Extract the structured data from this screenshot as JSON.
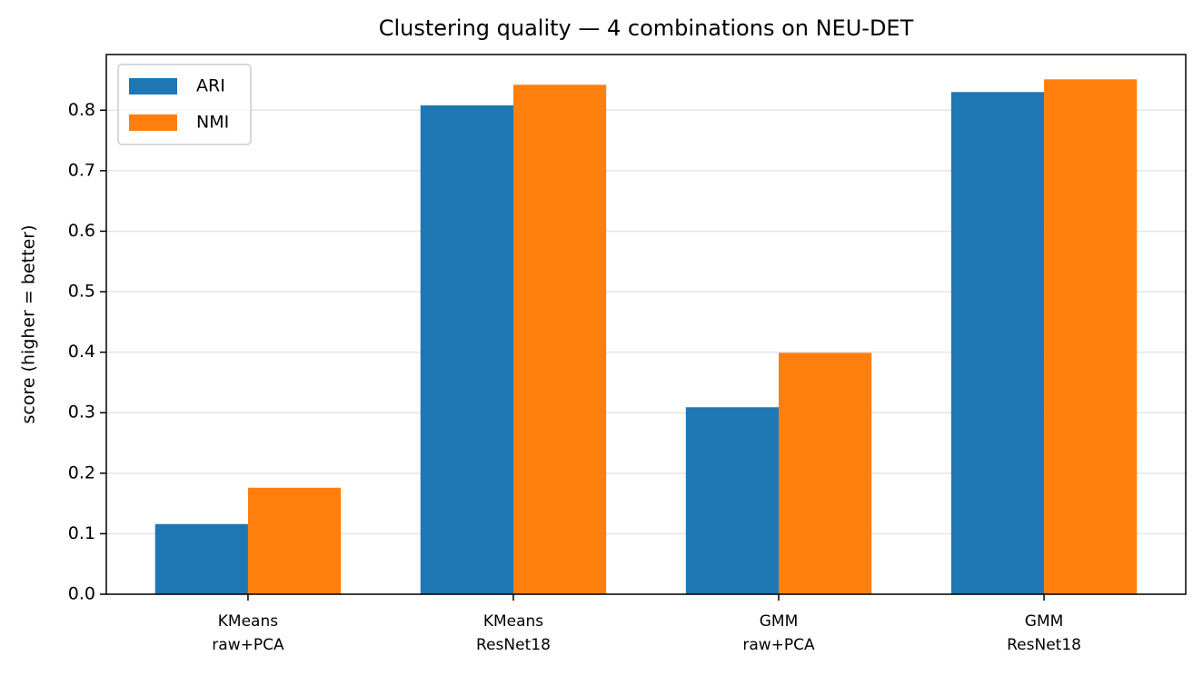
{
  "chart_data": {
    "type": "bar",
    "title": "Clustering quality — 4 combinations on NEU-DET",
    "y_label": "score (higher = better)",
    "categories": [
      [
        "KMeans",
        "raw+PCA"
      ],
      [
        "KMeans",
        "ResNet18"
      ],
      [
        "GMM",
        "raw+PCA"
      ],
      [
        "GMM",
        "ResNet18"
      ]
    ],
    "series": [
      {
        "name": "ARI",
        "color": "#1f77b4",
        "values": [
          0.116,
          0.808,
          0.309,
          0.83
        ]
      },
      {
        "name": "NMI",
        "color": "#ff7f0e",
        "values": [
          0.176,
          0.842,
          0.399,
          0.851
        ]
      }
    ],
    "ylim": [
      0,
      0.892
    ],
    "yticks": [
      0.0,
      0.1,
      0.2,
      0.3,
      0.4,
      0.5,
      0.6,
      0.7,
      0.8
    ],
    "ytick_labels": [
      "0.0",
      "0.1",
      "0.2",
      "0.3",
      "0.4",
      "0.5",
      "0.6",
      "0.7",
      "0.8"
    ],
    "grid": true,
    "legend": "upper left"
  }
}
